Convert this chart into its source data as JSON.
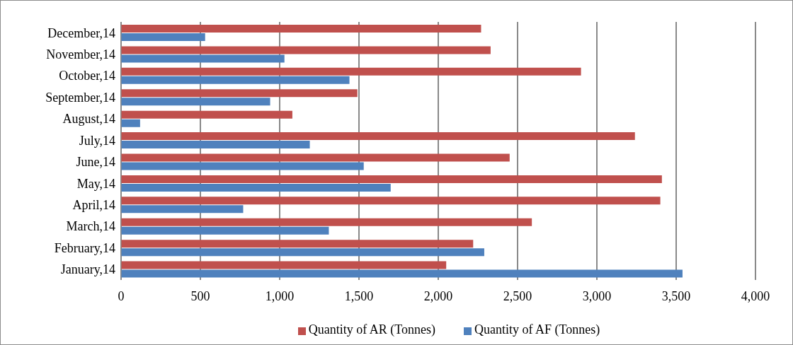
{
  "chart_data": {
    "type": "bar",
    "orientation": "horizontal",
    "categories": [
      "December,14",
      "November,14",
      "October,14",
      "September,14",
      "August,14",
      "July,14",
      "June,14",
      "May,14",
      "April,14",
      "March,14",
      "February,14",
      "January,14"
    ],
    "series": [
      {
        "name": "Quantity of AR (Tonnes)",
        "color": "#c0504d",
        "values": [
          2270,
          2330,
          2900,
          1490,
          1080,
          3240,
          2450,
          3410,
          3400,
          2590,
          2220,
          2050
        ]
      },
      {
        "name": "Quantity of AF (Tonnes)",
        "color": "#4f81bd",
        "values": [
          530,
          1030,
          1440,
          940,
          120,
          1190,
          1530,
          1700,
          770,
          1310,
          2290,
          3540
        ]
      }
    ],
    "xlim": [
      0,
      4000
    ],
    "xticks": [
      {
        "value": 0,
        "label": "0"
      },
      {
        "value": 500,
        "label": "500"
      },
      {
        "value": 1000,
        "label": "1,000"
      },
      {
        "value": 1500,
        "label": "1,500"
      },
      {
        "value": 2000,
        "label": "2,000"
      },
      {
        "value": 2500,
        "label": "2,500"
      },
      {
        "value": 3000,
        "label": "3,000"
      },
      {
        "value": 3500,
        "label": "3,500"
      },
      {
        "value": 4000,
        "label": "4,000"
      }
    ],
    "grid": "x",
    "legend": "bottom"
  }
}
